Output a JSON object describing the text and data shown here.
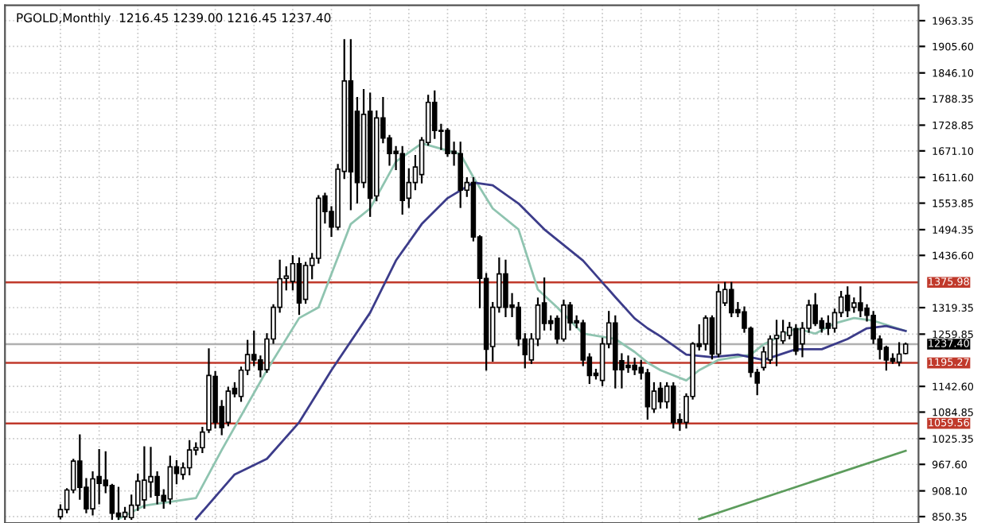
{
  "chart_data": {
    "type": "candlestick",
    "title": "PGOLD,Monthly  1216.45 1239.00 1216.45 1237.40",
    "categories": [
      null,
      null,
      null,
      null,
      null,
      null,
      null,
      null,
      null,
      null,
      null,
      null,
      null,
      null,
      null,
      null,
      null,
      null,
      null,
      null,
      null,
      null,
      null,
      null,
      null,
      null,
      null,
      null,
      null,
      null,
      null,
      null,
      null,
      null,
      null,
      null,
      null,
      null,
      null,
      null,
      null,
      null,
      null,
      null,
      null,
      null,
      null,
      null,
      null,
      null,
      null,
      null,
      null,
      null,
      null,
      null,
      null,
      null,
      null,
      null,
      null,
      null,
      null,
      null,
      null,
      null,
      null,
      null,
      null,
      null,
      null,
      null,
      null,
      null,
      null,
      null,
      null,
      null,
      null,
      null,
      null,
      null,
      null,
      null,
      null,
      null,
      null,
      null,
      null,
      null,
      null,
      null,
      null,
      null,
      null,
      null,
      null,
      null,
      null,
      null,
      null,
      null,
      null,
      null,
      null,
      null,
      null,
      null,
      null,
      null,
      null,
      null,
      null,
      null,
      null,
      null,
      null,
      null,
      null,
      null,
      null,
      null,
      null,
      null,
      null,
      null,
      null,
      null,
      null,
      null,
      null,
      null
    ],
    "ohlc": [
      [
        850,
        876,
        846,
        866
      ],
      [
        866,
        912,
        860,
        910
      ],
      [
        910,
        978,
        905,
        975
      ],
      [
        975,
        1033,
        890,
        916
      ],
      [
        916,
        935,
        860,
        868
      ],
      [
        868,
        950,
        855,
        935
      ],
      [
        940,
        1000,
        880,
        925
      ],
      [
        932,
        995,
        905,
        920
      ],
      [
        920,
        922,
        845,
        858
      ],
      [
        858,
        915,
        845,
        850
      ],
      [
        850,
        870,
        845,
        860
      ],
      [
        848,
        898,
        845,
        876
      ],
      [
        876,
        945,
        865,
        930
      ],
      [
        888,
        1006,
        870,
        932
      ],
      [
        928,
        1005,
        895,
        940
      ],
      [
        940,
        950,
        880,
        898
      ],
      [
        898,
        910,
        870,
        885
      ],
      [
        890,
        985,
        880,
        962
      ],
      [
        962,
        975,
        925,
        947
      ],
      [
        945,
        970,
        935,
        960
      ],
      [
        960,
        1020,
        945,
        1000
      ],
      [
        1000,
        1015,
        990,
        1005
      ],
      [
        1005,
        1050,
        995,
        1040
      ],
      [
        1045,
        1226,
        1040,
        1167
      ],
      [
        1165,
        1175,
        1050,
        1062
      ],
      [
        1097,
        1110,
        1035,
        1050
      ],
      [
        1062,
        1140,
        1055,
        1132
      ],
      [
        1138,
        1150,
        1120,
        1126
      ],
      [
        1120,
        1185,
        1110,
        1179
      ],
      [
        1179,
        1245,
        1170,
        1214
      ],
      [
        1214,
        1266,
        1190,
        1202
      ],
      [
        1202,
        1210,
        1165,
        1180
      ],
      [
        1180,
        1260,
        1175,
        1249
      ],
      [
        1249,
        1325,
        1240,
        1320
      ],
      [
        1320,
        1425,
        1310,
        1384
      ],
      [
        1385,
        1410,
        1360,
        1390
      ],
      [
        1378,
        1435,
        1360,
        1418
      ],
      [
        1418,
        1430,
        1305,
        1330
      ],
      [
        1338,
        1420,
        1330,
        1414
      ],
      [
        1414,
        1440,
        1385,
        1430
      ],
      [
        1430,
        1570,
        1420,
        1565
      ],
      [
        1570,
        1575,
        1510,
        1535
      ],
      [
        1535,
        1545,
        1480,
        1500
      ],
      [
        1500,
        1640,
        1495,
        1630
      ],
      [
        1625,
        1920,
        1610,
        1828
      ],
      [
        1828,
        1920,
        1540,
        1624
      ],
      [
        1760,
        1790,
        1555,
        1600
      ],
      [
        1600,
        1808,
        1590,
        1753
      ],
      [
        1760,
        1800,
        1525,
        1565
      ],
      [
        1570,
        1760,
        1560,
        1745
      ],
      [
        1745,
        1790,
        1690,
        1700
      ],
      [
        1700,
        1705,
        1640,
        1665
      ],
      [
        1670,
        1680,
        1630,
        1665
      ],
      [
        1665,
        1680,
        1530,
        1560
      ],
      [
        1565,
        1630,
        1545,
        1600
      ],
      [
        1600,
        1660,
        1585,
        1635
      ],
      [
        1618,
        1700,
        1600,
        1695
      ],
      [
        1690,
        1795,
        1685,
        1780
      ],
      [
        1780,
        1805,
        1700,
        1717
      ],
      [
        1717,
        1730,
        1675,
        1715
      ],
      [
        1717,
        1720,
        1660,
        1665
      ],
      [
        1670,
        1690,
        1640,
        1665
      ],
      [
        1665,
        1690,
        1545,
        1583
      ],
      [
        1583,
        1610,
        1570,
        1600
      ],
      [
        1600,
        1610,
        1470,
        1478
      ],
      [
        1478,
        1480,
        1320,
        1385
      ],
      [
        1385,
        1395,
        1180,
        1226
      ],
      [
        1232,
        1330,
        1200,
        1320
      ],
      [
        1320,
        1430,
        1310,
        1395
      ],
      [
        1395,
        1425,
        1300,
        1320
      ],
      [
        1325,
        1350,
        1300,
        1320
      ],
      [
        1320,
        1330,
        1235,
        1249
      ],
      [
        1249,
        1260,
        1185,
        1214
      ],
      [
        1202,
        1260,
        1195,
        1249
      ],
      [
        1249,
        1340,
        1235,
        1325
      ],
      [
        1330,
        1385,
        1270,
        1284
      ],
      [
        1290,
        1300,
        1270,
        1284
      ],
      [
        1295,
        1300,
        1240,
        1249
      ],
      [
        1249,
        1335,
        1245,
        1325
      ],
      [
        1325,
        1330,
        1270,
        1285
      ],
      [
        1290,
        1300,
        1275,
        1285
      ],
      [
        1285,
        1290,
        1190,
        1202
      ],
      [
        1208,
        1215,
        1150,
        1167
      ],
      [
        1172,
        1180,
        1160,
        1167
      ],
      [
        1156,
        1250,
        1145,
        1238
      ],
      [
        1238,
        1310,
        1230,
        1285
      ],
      [
        1285,
        1300,
        1140,
        1180
      ],
      [
        1200,
        1215,
        1140,
        1180
      ],
      [
        1190,
        1210,
        1175,
        1185
      ],
      [
        1190,
        1205,
        1170,
        1180
      ],
      [
        1185,
        1200,
        1160,
        1173
      ],
      [
        1173,
        1180,
        1070,
        1097
      ],
      [
        1092,
        1150,
        1085,
        1132
      ],
      [
        1138,
        1150,
        1095,
        1108
      ],
      [
        1108,
        1150,
        1095,
        1143
      ],
      [
        1143,
        1150,
        1050,
        1062
      ],
      [
        1068,
        1080,
        1045,
        1062
      ],
      [
        1062,
        1125,
        1050,
        1120
      ],
      [
        1120,
        1240,
        1115,
        1238
      ],
      [
        1238,
        1280,
        1225,
        1232
      ],
      [
        1238,
        1300,
        1225,
        1296
      ],
      [
        1296,
        1300,
        1205,
        1215
      ],
      [
        1215,
        1370,
        1210,
        1355
      ],
      [
        1330,
        1375,
        1325,
        1360
      ],
      [
        1360,
        1375,
        1300,
        1308
      ],
      [
        1315,
        1330,
        1300,
        1308
      ],
      [
        1310,
        1320,
        1265,
        1273
      ],
      [
        1273,
        1275,
        1165,
        1174
      ],
      [
        1174,
        1180,
        1125,
        1150
      ],
      [
        1185,
        1230,
        1180,
        1220
      ],
      [
        1202,
        1255,
        1195,
        1249
      ],
      [
        1250,
        1290,
        1190,
        1257
      ],
      [
        1245,
        1290,
        1240,
        1265
      ],
      [
        1257,
        1285,
        1250,
        1275
      ],
      [
        1272,
        1280,
        1215,
        1222
      ],
      [
        1238,
        1285,
        1210,
        1273
      ],
      [
        1273,
        1335,
        1265,
        1325
      ],
      [
        1325,
        1350,
        1280,
        1284
      ],
      [
        1290,
        1295,
        1265,
        1273
      ],
      [
        1284,
        1300,
        1260,
        1273
      ],
      [
        1273,
        1315,
        1265,
        1308
      ],
      [
        1308,
        1355,
        1300,
        1343
      ],
      [
        1347,
        1365,
        1300,
        1313
      ],
      [
        1320,
        1340,
        1310,
        1330
      ],
      [
        1330,
        1365,
        1300,
        1313
      ],
      [
        1318,
        1325,
        1290,
        1302
      ],
      [
        1302,
        1310,
        1240,
        1249
      ],
      [
        1249,
        1255,
        1205,
        1226
      ],
      [
        1230,
        1232,
        1180,
        1202
      ],
      [
        1205,
        1215,
        1195,
        1199
      ],
      [
        1197,
        1240,
        1190,
        1215
      ],
      [
        1216.45,
        1239.0,
        1216.45,
        1237.4
      ]
    ],
    "series": [
      {
        "type": "line",
        "color": "#8fc4b0",
        "values": [
          null,
          null,
          null,
          null,
          null,
          null,
          null,
          null,
          null,
          845,
          null,
          null,
          null,
          875,
          null,
          null,
          null,
          null,
          null,
          null,
          null,
          892,
          null,
          null,
          null,
          1000,
          null,
          null,
          null,
          null,
          null,
          null,
          1179,
          null,
          null,
          null,
          null,
          1296,
          null,
          null,
          1320,
          null,
          null,
          null,
          null,
          1507,
          null,
          null,
          1542,
          null,
          null,
          null,
          1647,
          null,
          null,
          null,
          1688,
          null,
          null,
          1676,
          null,
          null,
          1664,
          null,
          1612,
          null,
          null,
          1542,
          null,
          null,
          null,
          1495,
          null,
          null,
          1360,
          null,
          null,
          1320,
          null,
          null,
          null,
          1261,
          null,
          null,
          null,
          null,
          1249,
          null,
          null,
          1220,
          null,
          1196,
          null,
          1179,
          null,
          null,
          null,
          1156,
          null,
          1179,
          null,
          null,
          1202,
          null,
          null,
          null,
          null,
          1214,
          null,
          1237,
          null,
          null,
          null,
          null,
          1273,
          null,
          null,
          1261,
          null,
          null,
          1284,
          null,
          null,
          1296,
          null,
          null,
          1290,
          null,
          null,
          null,
          null,
          1267
        ]
      },
      {
        "type": "line",
        "color": "#3c3c8a",
        "values": [
          null,
          null,
          null,
          null,
          null,
          null,
          null,
          null,
          null,
          null,
          null,
          null,
          null,
          null,
          null,
          null,
          null,
          null,
          null,
          null,
          null,
          845,
          null,
          null,
          null,
          null,
          null,
          945,
          null,
          null,
          null,
          null,
          980,
          null,
          null,
          null,
          null,
          1062,
          null,
          null,
          1132,
          null,
          1179,
          null,
          null,
          null,
          null,
          null,
          1308,
          null,
          null,
          null,
          1425,
          null,
          null,
          null,
          1507,
          null,
          null,
          null,
          1565,
          null,
          null,
          null,
          1600,
          null,
          null,
          1594,
          null,
          null,
          null,
          1553,
          null,
          null,
          null,
          1495,
          null,
          null,
          null,
          null,
          null,
          1425,
          null,
          null,
          null,
          null,
          1343,
          null,
          null,
          1295,
          null,
          1273,
          null,
          1255,
          null,
          null,
          null,
          1214,
          null,
          null,
          null,
          1208,
          null,
          null,
          null,
          1214,
          null,
          null,
          null,
          1202,
          null,
          null,
          null,
          null,
          1226,
          null,
          null,
          null,
          1226,
          null,
          null,
          null,
          1249,
          null,
          null,
          1273,
          null,
          null,
          1278,
          null,
          null,
          1267
        ]
      },
      {
        "type": "line",
        "color": "#5c9c5c",
        "values": [
          null,
          null,
          null,
          null,
          null,
          null,
          null,
          null,
          null,
          null,
          null,
          null,
          null,
          null,
          null,
          null,
          null,
          null,
          null,
          null,
          null,
          null,
          null,
          null,
          null,
          null,
          null,
          null,
          null,
          null,
          null,
          null,
          null,
          null,
          null,
          null,
          null,
          null,
          null,
          null,
          null,
          null,
          null,
          null,
          null,
          null,
          null,
          null,
          null,
          null,
          null,
          null,
          null,
          null,
          null,
          null,
          null,
          null,
          null,
          null,
          null,
          null,
          null,
          null,
          null,
          null,
          null,
          null,
          null,
          null,
          null,
          null,
          null,
          null,
          null,
          null,
          null,
          null,
          null,
          null,
          null,
          null,
          null,
          null,
          null,
          null,
          null,
          null,
          null,
          null,
          null,
          null,
          null,
          null,
          null,
          null,
          null,
          null,
          null,
          845,
          null,
          null,
          null,
          null,
          null,
          null,
          null,
          null,
          null,
          null,
          null,
          null,
          null,
          null,
          null,
          null,
          null,
          null,
          null,
          null,
          null,
          null,
          null,
          null,
          null,
          null,
          null,
          null,
          null,
          null,
          null,
          998
        ]
      }
    ],
    "ylim": [
      836,
      1998
    ],
    "yticks": [
      {
        "value": 1963.35,
        "label": "1963.35"
      },
      {
        "value": 1905.6,
        "label": "1905.60"
      },
      {
        "value": 1846.1,
        "label": "1846.10"
      },
      {
        "value": 1788.35,
        "label": "1788.35"
      },
      {
        "value": 1728.85,
        "label": "1728.85"
      },
      {
        "value": 1671.1,
        "label": "1671.10"
      },
      {
        "value": 1611.6,
        "label": "1611.60"
      },
      {
        "value": 1553.85,
        "label": "1553.85"
      },
      {
        "value": 1494.35,
        "label": "1494.35"
      },
      {
        "value": 1436.6,
        "label": "1436.60"
      },
      {
        "value": 1319.35,
        "label": "1319.35"
      },
      {
        "value": 1259.85,
        "label": "1259.85"
      },
      {
        "value": 1142.6,
        "label": "1142.60"
      },
      {
        "value": 1084.85,
        "label": "1084.85"
      },
      {
        "value": 1025.35,
        "label": "1025.35"
      },
      {
        "value": 967.6,
        "label": "967.60"
      },
      {
        "value": 908.1,
        "label": "908.10"
      },
      {
        "value": 850.35,
        "label": "850.35"
      }
    ],
    "ref_lines": [
      {
        "axis": "y",
        "value": 1375.98,
        "label": "1375.98",
        "color": "#c0392b"
      },
      {
        "axis": "y",
        "value": 1195.27,
        "label": "1195.27",
        "color": "#c0392b"
      },
      {
        "axis": "y",
        "value": 1059.56,
        "label": "1059.56",
        "color": "#c0392b"
      },
      {
        "axis": "y",
        "value": 1237.4,
        "label": "1237.40",
        "color": "#b0b0b0"
      }
    ],
    "grid": true,
    "tick_labels": "y"
  }
}
